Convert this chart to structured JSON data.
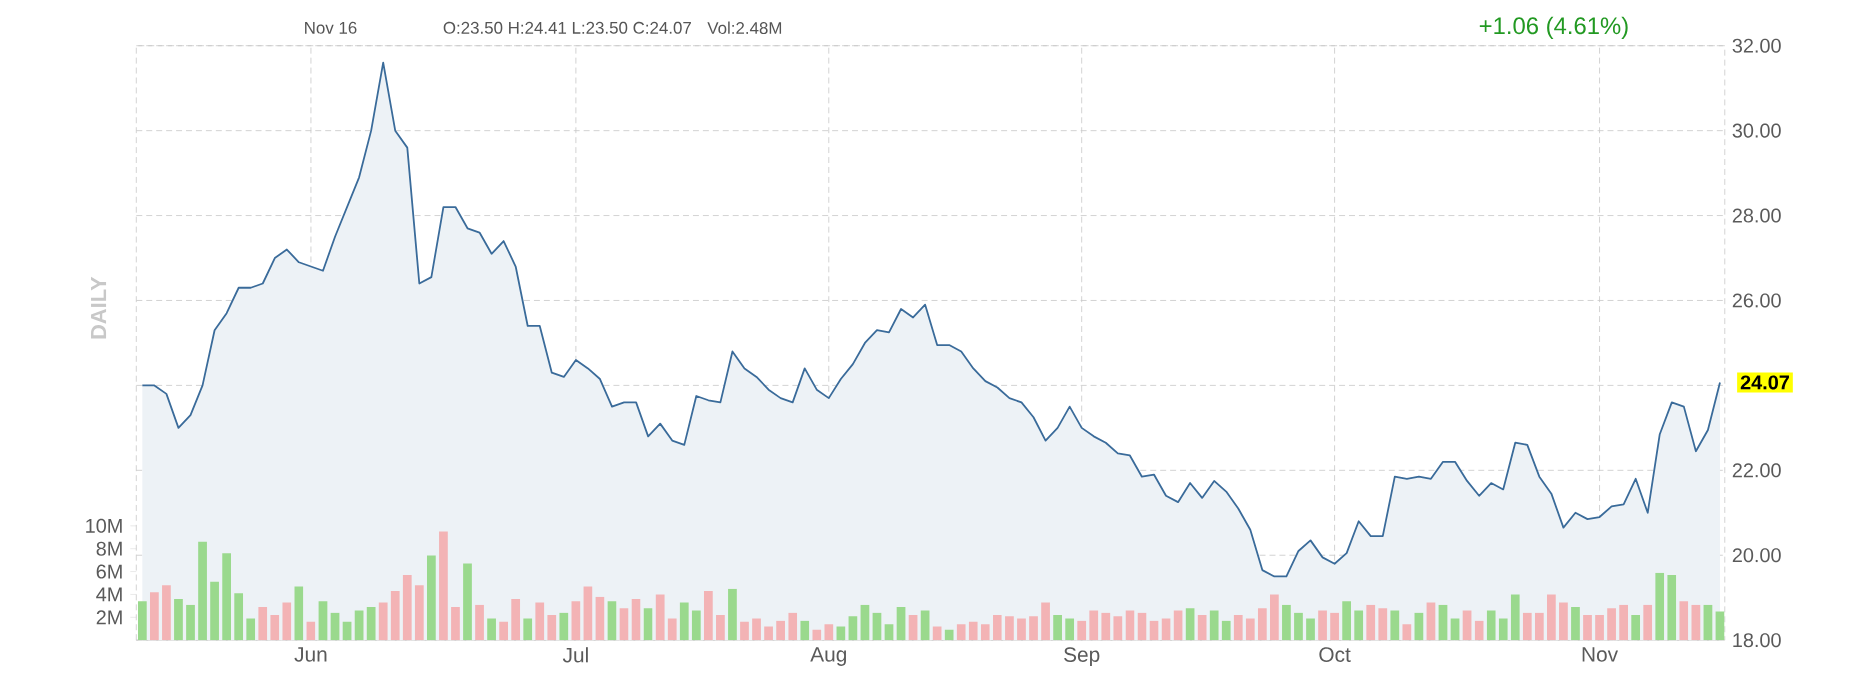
{
  "chart_data": {
    "type": "area",
    "annotations": [
      "DAILY",
      "Nov 16",
      "O:23.50 H:24.41 L:23.50 C:24.07",
      "Vol:2.48M",
      "+1.06 (4.61%)"
    ],
    "categories": [
      null,
      null,
      null,
      null,
      null,
      null,
      null,
      null,
      null,
      null,
      null,
      null,
      null,
      null,
      "Jun",
      null,
      null,
      null,
      null,
      null,
      null,
      null,
      null,
      null,
      null,
      null,
      null,
      null,
      null,
      null,
      null,
      null,
      null,
      null,
      null,
      null,
      "Jul",
      null,
      null,
      null,
      null,
      null,
      null,
      null,
      null,
      null,
      null,
      null,
      null,
      null,
      null,
      null,
      null,
      null,
      null,
      null,
      null,
      "Aug",
      null,
      null,
      null,
      null,
      null,
      null,
      null,
      null,
      null,
      null,
      null,
      null,
      null,
      null,
      null,
      null,
      null,
      null,
      null,
      null,
      "Sep",
      null,
      null,
      null,
      null,
      null,
      null,
      null,
      null,
      null,
      null,
      null,
      null,
      null,
      null,
      null,
      null,
      null,
      null,
      null,
      null,
      "Oct",
      null,
      null,
      null,
      null,
      null,
      null,
      null,
      null,
      null,
      null,
      null,
      null,
      null,
      null,
      null,
      null,
      null,
      null,
      null,
      null,
      null,
      "Nov",
      null,
      null,
      null,
      null,
      null,
      null,
      null,
      null,
      null,
      null
    ],
    "ylim": [
      18,
      32
    ],
    "yticks": [
      {
        "value": 18,
        "label": "18.00"
      },
      {
        "value": 20,
        "label": "20.00"
      },
      {
        "value": 22,
        "label": "22.00"
      },
      {
        "value": 24,
        "label": null
      },
      {
        "value": 26,
        "label": "26.00"
      },
      {
        "value": 28,
        "label": "28.00"
      },
      {
        "value": 30,
        "label": "30.00"
      },
      {
        "value": 32,
        "label": "32.00"
      }
    ],
    "y2lim": [
      0,
      52
    ],
    "y2ticks": [
      {
        "value": 2,
        "label": "2M"
      },
      {
        "value": 4,
        "label": "4M"
      },
      {
        "value": 6,
        "label": "6M"
      },
      {
        "value": 8,
        "label": "8M"
      },
      {
        "value": 10,
        "label": "10M"
      }
    ],
    "grid": true,
    "series": [
      {
        "color": "#3a6b9a",
        "values": [
          24.0,
          24.0,
          23.8,
          23.0,
          23.3,
          24.0,
          25.3,
          25.7,
          26.3,
          26.3,
          26.4,
          27.0,
          27.2,
          26.9,
          26.8,
          26.7,
          27.5,
          28.2,
          28.9,
          30.0,
          31.6,
          30.0,
          29.6,
          26.4,
          26.55,
          28.2,
          28.2,
          27.7,
          27.6,
          27.1,
          27.4,
          26.8,
          25.4,
          25.4,
          24.3,
          24.2,
          24.6,
          24.4,
          24.15,
          23.5,
          23.6,
          23.6,
          22.8,
          23.1,
          22.7,
          22.6,
          23.75,
          23.65,
          23.6,
          24.8,
          24.4,
          24.2,
          23.9,
          23.7,
          23.6,
          24.4,
          23.9,
          23.7,
          24.15,
          24.5,
          25.0,
          25.3,
          25.25,
          25.8,
          25.6,
          25.9,
          24.95,
          24.95,
          24.8,
          24.4,
          24.1,
          23.95,
          23.7,
          23.6,
          23.25,
          22.7,
          23.0,
          23.5,
          23.0,
          22.8,
          22.65,
          22.4,
          22.35,
          21.85,
          21.9,
          21.4,
          21.25,
          21.7,
          21.35,
          21.75,
          21.5,
          21.1,
          20.6,
          19.65,
          19.5,
          19.5,
          20.1,
          20.35,
          19.95,
          19.8,
          20.05,
          20.8,
          20.45,
          20.45,
          21.85,
          21.8,
          21.85,
          21.8,
          22.2,
          22.2,
          21.75,
          21.4,
          21.7,
          21.55,
          22.65,
          22.6,
          21.85,
          21.45,
          20.65,
          21.0,
          20.85,
          20.9,
          21.15,
          21.2,
          21.8,
          21.0,
          22.85,
          23.6,
          23.5,
          22.45,
          22.95,
          24.07
        ],
        "value_labels": [
          null,
          null,
          null,
          null,
          null,
          null,
          null,
          null,
          null,
          null,
          null,
          null,
          null,
          null,
          null,
          null,
          null,
          null,
          null,
          null,
          null,
          null,
          null,
          null,
          null,
          null,
          null,
          null,
          null,
          null,
          null,
          null,
          null,
          null,
          null,
          null,
          null,
          null,
          null,
          null,
          null,
          null,
          null,
          null,
          null,
          null,
          null,
          null,
          null,
          null,
          null,
          null,
          null,
          null,
          null,
          null,
          null,
          null,
          null,
          null,
          null,
          null,
          null,
          null,
          null,
          null,
          null,
          null,
          null,
          null,
          null,
          null,
          null,
          null,
          null,
          null,
          null,
          null,
          null,
          null,
          null,
          null,
          null,
          null,
          null,
          null,
          null,
          null,
          null,
          null,
          null,
          null,
          null,
          null,
          null,
          null,
          null,
          null,
          null,
          null,
          null,
          null,
          null,
          null,
          null,
          null,
          null,
          null,
          null,
          null,
          null,
          null,
          null,
          null,
          null,
          null,
          null,
          null,
          null,
          null,
          null,
          null,
          null,
          null,
          null,
          null,
          null,
          null,
          null,
          null,
          null,
          "24.07"
        ]
      },
      {
        "type": "bar",
        "axis": "y2",
        "values": [
          3.4,
          4.2,
          4.8,
          3.6,
          3.1,
          8.6,
          5.1,
          7.6,
          4.1,
          1.9,
          2.9,
          2.2,
          3.3,
          4.7,
          1.6,
          3.4,
          2.4,
          1.6,
          2.6,
          2.9,
          3.3,
          4.3,
          5.7,
          4.8,
          7.4,
          9.5,
          2.9,
          6.7,
          3.1,
          1.9,
          1.6,
          3.6,
          1.9,
          3.3,
          2.2,
          2.4,
          3.4,
          4.7,
          3.8,
          3.4,
          2.8,
          3.6,
          2.8,
          4.0,
          1.9,
          3.3,
          2.6,
          4.3,
          2.2,
          4.5,
          1.6,
          1.9,
          1.2,
          1.7,
          2.4,
          1.7,
          0.9,
          1.4,
          1.2,
          2.1,
          3.1,
          2.4,
          1.4,
          2.9,
          2.2,
          2.6,
          1.2,
          0.9,
          1.4,
          1.6,
          1.4,
          2.2,
          2.1,
          1.9,
          2.1,
          3.3,
          2.2,
          1.9,
          1.7,
          2.6,
          2.4,
          2.1,
          2.6,
          2.4,
          1.7,
          1.9,
          2.6,
          2.8,
          2.2,
          2.6,
          1.7,
          2.2,
          1.9,
          2.8,
          4.0,
          3.1,
          2.4,
          1.9,
          2.6,
          2.4,
          3.4,
          2.6,
          3.1,
          2.8,
          2.6,
          1.4,
          2.4,
          3.3,
          3.1,
          1.9,
          2.6,
          1.7,
          2.6,
          1.9,
          4.0,
          2.4,
          2.4,
          4.0,
          3.3,
          2.9,
          2.2,
          2.2,
          2.8,
          3.1,
          2.2,
          3.1,
          5.9,
          5.7,
          3.4,
          3.1,
          3.1,
          2.5
        ],
        "colors": [
          "#9ad98d",
          "#f3b3b5",
          "#f3b3b5",
          "#9ad98d",
          "#9ad98d",
          "#9ad98d",
          "#9ad98d",
          "#9ad98d",
          "#9ad98d",
          "#9ad98d",
          "#f3b3b5",
          "#f3b3b5",
          "#f3b3b5",
          "#9ad98d",
          "#f3b3b5",
          "#9ad98d",
          "#9ad98d",
          "#9ad98d",
          "#9ad98d",
          "#9ad98d",
          "#f3b3b5",
          "#f3b3b5",
          "#f3b3b5",
          "#f3b3b5",
          "#9ad98d",
          "#f3b3b5",
          "#f3b3b5",
          "#9ad98d",
          "#f3b3b5",
          "#9ad98d",
          "#f3b3b5",
          "#f3b3b5",
          "#9ad98d",
          "#f3b3b5",
          "#f3b3b5",
          "#9ad98d",
          "#f3b3b5",
          "#f3b3b5",
          "#f3b3b5",
          "#9ad98d",
          "#f3b3b5",
          "#f3b3b5",
          "#9ad98d",
          "#f3b3b5",
          "#f3b3b5",
          "#9ad98d",
          "#9ad98d",
          "#f3b3b5",
          "#f3b3b5",
          "#9ad98d",
          "#f3b3b5",
          "#f3b3b5",
          "#f3b3b5",
          "#f3b3b5",
          "#f3b3b5",
          "#9ad98d",
          "#f3b3b5",
          "#f3b3b5",
          "#9ad98d",
          "#9ad98d",
          "#9ad98d",
          "#9ad98d",
          "#9ad98d",
          "#9ad98d",
          "#f3b3b5",
          "#9ad98d",
          "#f3b3b5",
          "#9ad98d",
          "#f3b3b5",
          "#f3b3b5",
          "#f3b3b5",
          "#f3b3b5",
          "#f3b3b5",
          "#f3b3b5",
          "#f3b3b5",
          "#f3b3b5",
          "#9ad98d",
          "#9ad98d",
          "#f3b3b5",
          "#f3b3b5",
          "#f3b3b5",
          "#f3b3b5",
          "#f3b3b5",
          "#f3b3b5",
          "#f3b3b5",
          "#f3b3b5",
          "#f3b3b5",
          "#9ad98d",
          "#f3b3b5",
          "#9ad98d",
          "#9ad98d",
          "#f3b3b5",
          "#f3b3b5",
          "#f3b3b5",
          "#f3b3b5",
          "#9ad98d",
          "#9ad98d",
          "#9ad98d",
          "#f3b3b5",
          "#f3b3b5",
          "#9ad98d",
          "#9ad98d",
          "#f3b3b5",
          "#f3b3b5",
          "#9ad98d",
          "#f3b3b5",
          "#9ad98d",
          "#f3b3b5",
          "#9ad98d",
          "#9ad98d",
          "#f3b3b5",
          "#f3b3b5",
          "#9ad98d",
          "#9ad98d",
          "#9ad98d",
          "#f3b3b5",
          "#f3b3b5",
          "#f3b3b5",
          "#f3b3b5",
          "#9ad98d",
          "#f3b3b5",
          "#f3b3b5",
          "#f3b3b5",
          "#f3b3b5",
          "#9ad98d",
          "#f3b3b5",
          "#9ad98d",
          "#9ad98d",
          "#f3b3b5",
          "#f3b3b5",
          "#9ad98d",
          "#9ad98d"
        ]
      }
    ]
  }
}
